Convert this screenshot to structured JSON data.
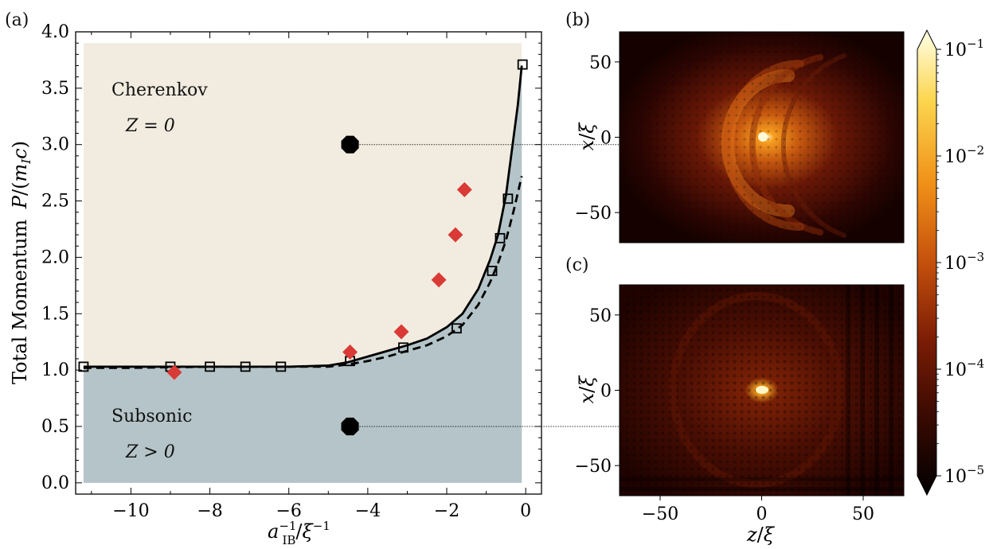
{
  "panels": {
    "a": {
      "label": "(a)"
    },
    "b": {
      "label": "(b)"
    },
    "c": {
      "label": "(c)"
    }
  },
  "chart_data": [
    {
      "panel": "(a)",
      "type": "scatter",
      "xlabel": "a_IB^{-1}/ξ^{-1}",
      "ylabel": "Total Momentum P/(m_I c)",
      "xlim": [
        -11.4,
        0.4
      ],
      "ylim": [
        -0.1,
        4.0
      ],
      "xticks": [
        -10,
        -8,
        -6,
        -4,
        -2,
        0
      ],
      "xtick_labels": [
        "−10",
        "−8",
        "−6",
        "−4",
        "−2",
        "0"
      ],
      "yticks": [
        0.0,
        0.5,
        1.0,
        1.5,
        2.0,
        2.5,
        3.0,
        3.5,
        4.0
      ],
      "ytick_labels": [
        "0.0",
        "0.5",
        "1.0",
        "1.5",
        "2.0",
        "2.5",
        "3.0",
        "3.5",
        "4.0"
      ],
      "regions": [
        {
          "label": "Cherenkov",
          "sublabel": "Z = 0",
          "color": "#f2ece0"
        },
        {
          "label": "Subsonic",
          "sublabel": "Z > 0",
          "color": "#b5c4c8"
        }
      ],
      "series": [
        {
          "style": "solid-line",
          "color": "#000000",
          "x": [
            -11.2,
            -10,
            -8,
            -6,
            -5,
            -4.5,
            -4,
            -3.5,
            -3,
            -2.5,
            -2,
            -1.6,
            -1.2,
            -0.9,
            -0.7,
            -0.5,
            -0.35,
            -0.2,
            -0.1
          ],
          "y": [
            1.03,
            1.03,
            1.03,
            1.03,
            1.04,
            1.07,
            1.12,
            1.17,
            1.22,
            1.28,
            1.38,
            1.5,
            1.72,
            1.98,
            2.2,
            2.55,
            2.95,
            3.35,
            3.7
          ]
        },
        {
          "style": "dashed-line",
          "color": "#000000",
          "x": [
            -11.2,
            -10,
            -8,
            -6,
            -5,
            -4.5,
            -4,
            -3.5,
            -3,
            -2.5,
            -2,
            -1.6,
            -1.2,
            -0.9,
            -0.7,
            -0.5,
            -0.3,
            -0.1
          ],
          "y": [
            1.02,
            1.02,
            1.03,
            1.03,
            1.03,
            1.05,
            1.08,
            1.12,
            1.17,
            1.22,
            1.3,
            1.4,
            1.58,
            1.78,
            1.95,
            2.15,
            2.42,
            2.72
          ]
        },
        {
          "style": "open-square",
          "color": "#000000",
          "x": [
            -11.2,
            -9.0,
            -8.0,
            -7.1,
            -6.2,
            -4.45,
            -3.1,
            -1.75,
            -0.85,
            -0.65,
            -0.45,
            -0.08
          ],
          "y": [
            1.03,
            1.03,
            1.03,
            1.03,
            1.03,
            1.08,
            1.2,
            1.37,
            1.88,
            2.17,
            2.52,
            3.71
          ]
        },
        {
          "style": "red-diamond",
          "color": "#d93a35",
          "x": [
            -8.9,
            -4.45,
            -3.15,
            -2.2,
            -1.78,
            -1.55
          ],
          "y": [
            0.98,
            1.16,
            1.34,
            1.8,
            2.2,
            2.6
          ]
        },
        {
          "style": "black-octagon",
          "color": "#000000",
          "x": [
            -4.45,
            -4.45
          ],
          "y": [
            3.0,
            0.5
          ]
        }
      ]
    },
    {
      "panel": "(b)",
      "type": "heatmap",
      "ylabel": "x/ξ",
      "yticks": [
        50,
        0,
        -50
      ],
      "ytick_labels": [
        "50",
        "0",
        "−50"
      ]
    },
    {
      "panel": "(c)",
      "type": "heatmap",
      "ylabel": "x/ξ",
      "xlabel": "z/ξ",
      "xticks": [
        -50,
        0,
        50
      ],
      "xtick_labels": [
        "−50",
        "0",
        "50"
      ],
      "yticks": [
        50,
        0,
        -50
      ],
      "ytick_labels": [
        "50",
        "0",
        "−50"
      ]
    }
  ],
  "colorbar": {
    "scale": "log",
    "min": 1e-05,
    "max": 0.1,
    "ticks": [
      {
        "base": "10",
        "exp": "−1"
      },
      {
        "base": "10",
        "exp": "−2"
      },
      {
        "base": "10",
        "exp": "−3"
      },
      {
        "base": "10",
        "exp": "−4"
      },
      {
        "base": "10",
        "exp": "−5"
      }
    ],
    "colors": [
      "#000000",
      "#3a0a02",
      "#7a1c05",
      "#c4500c",
      "#f09018",
      "#fcd650",
      "#ffffe6"
    ]
  },
  "text": {
    "cherenkov": "Cherenkov",
    "subsonic": "Subsonic",
    "zeq": "Z = 0",
    "zgt": "Z > 0",
    "ylabel_main": "Total Momentum",
    "ylabel_P": "P",
    "ylabel_m": "m",
    "ylabel_I": "I",
    "ylabel_c": "c",
    "xlabel_a": "a",
    "xlabel_sup": "−1",
    "xlabel_sub": "IB",
    "xlabel_xi": "ξ",
    "xlabel_sup2": "−1",
    "xi_x": "x",
    "xi_xi": "ξ",
    "z_z": "z",
    "z_xi": "ξ"
  }
}
